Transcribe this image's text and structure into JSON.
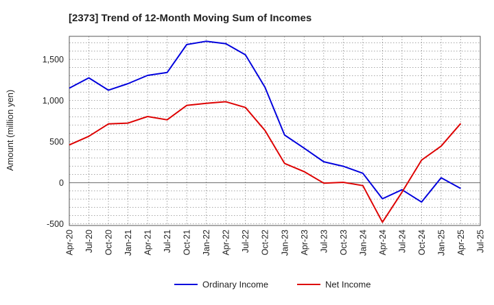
{
  "chart_data": {
    "type": "line",
    "title": "[2373]  Trend of 12-Month Moving Sum of Incomes",
    "xlabel": "",
    "ylabel": "Amount (million yen)",
    "ylim": [
      -520,
      1780
    ],
    "y_ticks": [
      -500,
      0,
      500,
      1000,
      1500
    ],
    "y_tick_labels": [
      "-500",
      "0",
      "500",
      "1,000",
      "1,500"
    ],
    "categories": [
      "Apr-20",
      "Jul-20",
      "Oct-20",
      "Jan-21",
      "Apr-21",
      "Jul-21",
      "Oct-21",
      "Jan-22",
      "Apr-22",
      "Jul-22",
      "Oct-22",
      "Jan-23",
      "Apr-23",
      "Jul-23",
      "Oct-23",
      "Jan-24",
      "Apr-24",
      "Jul-24",
      "Oct-24",
      "Jan-25",
      "Apr-25",
      "Jul-25"
    ],
    "series": [
      {
        "name": "Ordinary Income",
        "color": "#0000dd",
        "values": [
          1150,
          1275,
          1125,
          1205,
          1305,
          1340,
          1680,
          1720,
          1690,
          1555,
          1160,
          580,
          420,
          255,
          200,
          115,
          -195,
          -85,
          -235,
          60,
          -70,
          null
        ]
      },
      {
        "name": "Net Income",
        "color": "#dd0000",
        "values": [
          460,
          565,
          715,
          725,
          805,
          765,
          940,
          965,
          985,
          915,
          635,
          235,
          135,
          -5,
          5,
          -35,
          -480,
          -115,
          275,
          445,
          720,
          null
        ]
      }
    ],
    "grid": true,
    "legend": "bottom-center"
  }
}
